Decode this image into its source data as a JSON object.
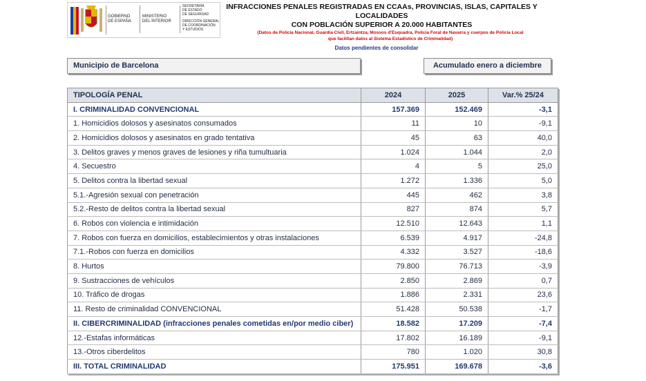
{
  "header": {
    "logo": {
      "government": [
        "GOBIERNO",
        "DE ESPAÑA"
      ],
      "ministry": [
        "MINISTERIO",
        "DEL INTERIOR"
      ],
      "secretariat": [
        "SECRETARÍA",
        "DE ESTADO",
        "DE SEGURIDAD"
      ],
      "directorate": [
        "DIRECCIÓN GENERAL",
        "DE COORDINACIÓN",
        "Y ESTUDIOS"
      ]
    },
    "title": [
      "INFRACCIONES PENALES REGISTRADAS EN CCAAs, PROVINCIAS, ISLAS, CAPITALES Y LOCALIDADES",
      "CON POBLACIÓN SUPERIOR A 20.000 HABITANTES"
    ],
    "note": [
      "(Datos de Policía Nacional, Guardia Civil, Ertzaintza, Mossos d'Esquadra, Policía Foral de Navarra y cuerpos de Policía Local",
      "que facilitan datos al Sistema Estadístico de Criminalidad)"
    ],
    "status": "Datos pendientes de consolidar"
  },
  "filters": {
    "municipality": "Municipio de Barcelona",
    "period": "Acumulado enero a diciembre"
  },
  "table": {
    "columns": [
      "TIPOLOGÍA PENAL",
      "2024",
      "2025",
      "Var.% 25/24"
    ],
    "rows": [
      [
        "I. CRIMINALIDAD CONVENCIONAL",
        "157.369",
        "152.469",
        "-3,1"
      ],
      [
        "1. Homicidios dolosos y asesinatos consumados",
        "11",
        "10",
        "-9,1"
      ],
      [
        "2. Homicidios dolosos y asesinatos en grado tentativa",
        "45",
        "63",
        "40,0"
      ],
      [
        "3. Delitos graves y menos graves de lesiones y riña tumultuaria",
        "1.024",
        "1.044",
        "2,0"
      ],
      [
        "4. Secuestro",
        "4",
        "5",
        "25,0"
      ],
      [
        "5. Delitos contra la libertad sexual",
        "1.272",
        "1.336",
        "5,0"
      ],
      [
        "5.1.-Agresión sexual con penetración",
        "445",
        "462",
        "3,8"
      ],
      [
        "5.2.-Resto de delitos contra la libertad sexual",
        "827",
        "874",
        "5,7"
      ],
      [
        "6. Robos con violencia e intimidación",
        "12.510",
        "12.643",
        "1,1"
      ],
      [
        "7. Robos con fuerza en domicilios, establecimientos y otras instalaciones",
        "6.539",
        "4.917",
        "-24,8"
      ],
      [
        "7.1.-Robos con fuerza en domicilios",
        "4.332",
        "3.527",
        "-18,6"
      ],
      [
        "8. Hurtos",
        "79.800",
        "76.713",
        "-3,9"
      ],
      [
        "9. Sustracciones de vehículos",
        "2.850",
        "2.869",
        "0,7"
      ],
      [
        "10. Tráfico de drogas",
        "1.886",
        "2.331",
        "23,6"
      ],
      [
        "11. Resto de criminalidad CONVENCIONAL",
        "51.428",
        "50.538",
        "-1,7"
      ],
      [
        "II. CIBERCRIMINALIDAD (infracciones penales cometidas en/por medio ciber)",
        "18.582",
        "17.209",
        "-7,4"
      ],
      [
        "12.-Estafas informáticas",
        "17.802",
        "16.189",
        "-9,1"
      ],
      [
        "13.-Otros ciberdelitos",
        "780",
        "1.020",
        "30,8"
      ],
      [
        "III. TOTAL CRIMINALIDAD",
        "175.951",
        "169.678",
        "-3,6"
      ]
    ]
  }
}
